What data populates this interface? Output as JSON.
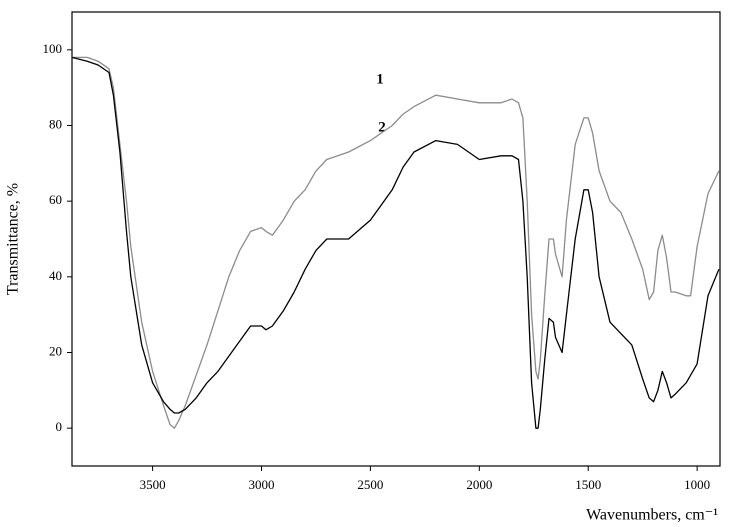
{
  "chart_data": {
    "type": "line",
    "xlabel": "Wavenumbers, cm⁻¹",
    "ylabel": "Transmittance, %",
    "x": [
      3870,
      3800,
      3750,
      3700,
      3680,
      3650,
      3620,
      3600,
      3550,
      3500,
      3450,
      3420,
      3400,
      3380,
      3350,
      3300,
      3250,
      3200,
      3150,
      3100,
      3050,
      3000,
      2980,
      2950,
      2900,
      2850,
      2800,
      2750,
      2700,
      2600,
      2500,
      2400,
      2350,
      2300,
      2200,
      2100,
      2000,
      1900,
      1850,
      1820,
      1800,
      1780,
      1760,
      1740,
      1730,
      1720,
      1700,
      1680,
      1660,
      1650,
      1620,
      1600,
      1560,
      1520,
      1500,
      1480,
      1450,
      1400,
      1350,
      1300,
      1250,
      1220,
      1200,
      1180,
      1160,
      1140,
      1120,
      1100,
      1050,
      1030,
      1000,
      950,
      900
    ],
    "series": [
      {
        "name": "1",
        "color": "#8c8c8c",
        "values": [
          98,
          98,
          97,
          95,
          90,
          75,
          60,
          48,
          28,
          15,
          6,
          1,
          0,
          2,
          6,
          14,
          22,
          31,
          40,
          47,
          52,
          53,
          52,
          51,
          55,
          60,
          63,
          68,
          71,
          73,
          76,
          80,
          83,
          85,
          88,
          87,
          86,
          86,
          87,
          86,
          82,
          60,
          30,
          15,
          13,
          18,
          35,
          50,
          50,
          46,
          40,
          55,
          75,
          82,
          82,
          78,
          68,
          60,
          57,
          50,
          42,
          34,
          36,
          47,
          51,
          45,
          36,
          36,
          35,
          35,
          48,
          62,
          68
        ]
      },
      {
        "name": "2",
        "color": "#000000",
        "values": [
          98,
          97,
          96,
          94,
          88,
          73,
          52,
          40,
          22,
          12,
          7,
          5,
          4,
          4,
          5,
          8,
          12,
          15,
          19,
          23,
          27,
          27,
          26,
          27,
          31,
          36,
          42,
          47,
          50,
          50,
          55,
          63,
          69,
          73,
          76,
          75,
          71,
          72,
          72,
          71,
          60,
          40,
          12,
          0,
          0,
          5,
          18,
          29,
          28,
          24,
          20,
          30,
          50,
          63,
          63,
          57,
          40,
          28,
          25,
          22,
          13,
          8,
          7,
          10,
          15,
          12,
          8,
          9,
          12,
          14,
          17,
          35,
          42
        ]
      }
    ],
    "xlim": [
      3870,
      895
    ],
    "xticks": [
      3500,
      3000,
      2500,
      2000,
      1500,
      1000
    ],
    "ylim": [
      -10,
      110
    ],
    "yticks": [
      0,
      20,
      40,
      60,
      80,
      100
    ]
  }
}
